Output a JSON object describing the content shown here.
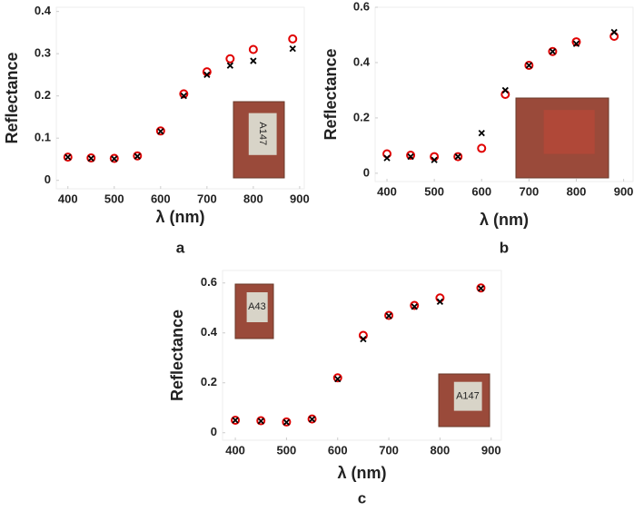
{
  "chart_data": [
    {
      "type": "scatter",
      "panel_label": "a",
      "x_label": "λ  (nm)",
      "y_label": "Reflectance",
      "x": [
        400,
        450,
        500,
        550,
        600,
        650,
        700,
        750,
        800,
        885
      ],
      "series": [
        {
          "color": "#e00000",
          "marker": "circle",
          "values": [
            0.055,
            0.053,
            0.052,
            0.058,
            0.117,
            0.205,
            0.257,
            0.288,
            0.31,
            0.335
          ]
        },
        {
          "color": "#000000",
          "marker": "x",
          "values": [
            0.055,
            0.052,
            0.051,
            0.057,
            0.116,
            0.2,
            0.25,
            0.272,
            0.283,
            0.312
          ]
        }
      ],
      "xlim": [
        375,
        910
      ],
      "ylim": [
        -0.02,
        0.41
      ],
      "xticks": [
        400,
        500,
        600,
        700,
        800,
        900
      ],
      "yticks": [
        0,
        0.1,
        0.2,
        0.3,
        0.4
      ],
      "annotations": [
        "A147"
      ]
    },
    {
      "type": "scatter",
      "panel_label": "b",
      "x_label": "λ  (nm)",
      "y_label": "Reflectance",
      "x": [
        400,
        450,
        500,
        550,
        600,
        650,
        700,
        750,
        800,
        880
      ],
      "series": [
        {
          "color": "#e00000",
          "marker": "circle",
          "values": [
            0.07,
            0.065,
            0.06,
            0.06,
            0.09,
            0.285,
            0.39,
            0.44,
            0.475,
            0.495
          ]
        },
        {
          "color": "#000000",
          "marker": "x",
          "values": [
            0.055,
            0.06,
            0.048,
            0.06,
            0.145,
            0.3,
            0.39,
            0.44,
            0.468,
            0.51
          ]
        }
      ],
      "xlim": [
        375,
        920
      ],
      "ylim": [
        -0.03,
        0.6
      ],
      "xticks": [
        400,
        500,
        600,
        700,
        800,
        900
      ],
      "yticks": [
        0,
        0.2,
        0.4,
        0.6
      ],
      "annotations": []
    },
    {
      "type": "scatter",
      "panel_label": "c",
      "x_label": "λ  (nm)",
      "y_label": "Reflectance",
      "x": [
        400,
        450,
        500,
        550,
        600,
        650,
        700,
        750,
        800,
        880
      ],
      "series": [
        {
          "color": "#e00000",
          "marker": "circle",
          "values": [
            0.05,
            0.048,
            0.043,
            0.055,
            0.22,
            0.39,
            0.47,
            0.51,
            0.54,
            0.58
          ]
        },
        {
          "color": "#000000",
          "marker": "x",
          "values": [
            0.05,
            0.047,
            0.042,
            0.054,
            0.215,
            0.375,
            0.468,
            0.505,
            0.525,
            0.578
          ]
        }
      ],
      "xlim": [
        375,
        920
      ],
      "ylim": [
        -0.03,
        0.65
      ],
      "xticks": [
        400,
        500,
        600,
        700,
        800,
        900
      ],
      "yticks": [
        0,
        0.2,
        0.4,
        0.6
      ],
      "annotations": [
        "A43",
        "A147"
      ]
    }
  ]
}
